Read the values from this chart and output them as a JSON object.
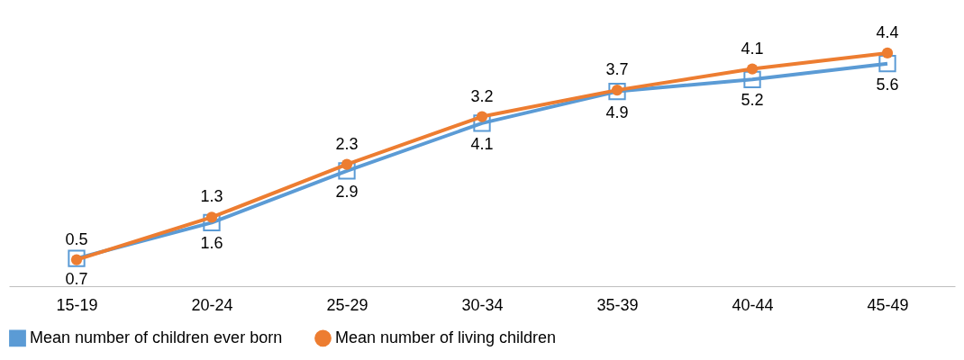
{
  "chart_data": {
    "type": "line",
    "categories": [
      "15-19",
      "20-24",
      "25-29",
      "30-34",
      "35-39",
      "40-44",
      "45-49"
    ],
    "series": [
      {
        "name": "Mean number of children ever born",
        "color": "#5b9bd5",
        "values": [
          0.7,
          1.6,
          2.9,
          4.1,
          4.9,
          5.2,
          5.6
        ],
        "axis": "y2",
        "marker": "square"
      },
      {
        "name": "Mean number of living children",
        "color": "#ed7d31",
        "values": [
          0.5,
          1.3,
          2.3,
          3.2,
          3.7,
          4.1,
          4.4
        ],
        "marker": "circle"
      }
    ],
    "data_labels": true,
    "legend": "bottom",
    "tick_labels": "x"
  }
}
